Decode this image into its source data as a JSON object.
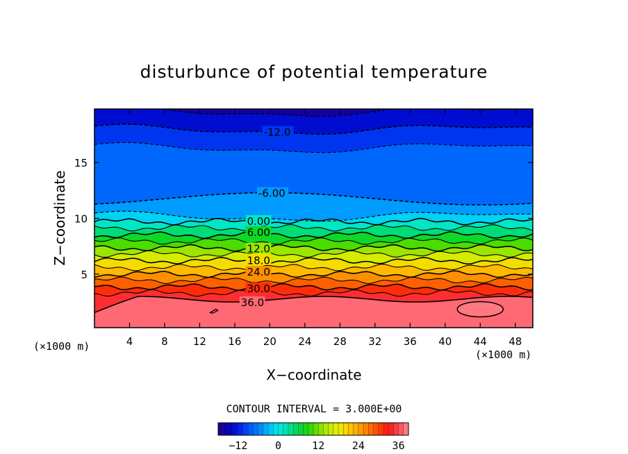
{
  "chart_data": {
    "type": "contour",
    "title": "disturbunce of potential temperature",
    "xlabel": "X−coordinate",
    "ylabel": "Z−coordinate",
    "x_unit_left": "(×1000 m)",
    "x_unit_right": "(×1000 m)",
    "xlim": [
      0,
      50
    ],
    "ylim": [
      0.2,
      19.8
    ],
    "x_ticks": [
      4,
      8,
      12,
      16,
      20,
      24,
      28,
      32,
      36,
      40,
      44,
      48
    ],
    "x_tick_labels": [
      "4",
      "8",
      "12",
      "16",
      "20",
      "24",
      "28",
      "32",
      "36",
      "40",
      "44",
      "48"
    ],
    "y_ticks": [
      5,
      10,
      15
    ],
    "y_tick_labels": [
      "5",
      "10",
      "15"
    ],
    "contour_interval_text": "CONTOUR INTERVAL = 3.000E+00",
    "contour_interval": 3,
    "levels": [
      {
        "value": -15,
        "z": 19.55,
        "dashed": true
      },
      {
        "value": -12,
        "z": 17.95,
        "dashed": true,
        "label": "-12.0",
        "label_x": 19.3
      },
      {
        "value": -9,
        "z": 16.3,
        "dashed": true
      },
      {
        "value": -6,
        "z": 11.4,
        "dashed": true,
        "label": "-6.00",
        "label_x": 18.7
      },
      {
        "value": -3,
        "z": 10.15,
        "dashed": true
      },
      {
        "value": 0,
        "z": 9.7,
        "dashed": false,
        "label": "0.00",
        "label_x": 17.4
      },
      {
        "value": 3,
        "z": 9.15,
        "dashed": false
      },
      {
        "value": 6,
        "z": 8.5,
        "dashed": false,
        "label": "6.00",
        "label_x": 17.4
      },
      {
        "value": 9,
        "z": 7.95,
        "dashed": false
      },
      {
        "value": 12,
        "z": 7.35,
        "dashed": false,
        "label": "12.0",
        "label_x": 17.4
      },
      {
        "value": 15,
        "z": 6.8,
        "dashed": false
      },
      {
        "value": 18,
        "z": 6.2,
        "dashed": false,
        "label": "18.0",
        "label_x": 17.4
      },
      {
        "value": 21,
        "z": 5.6,
        "dashed": false
      },
      {
        "value": 24,
        "z": 5.0,
        "dashed": false,
        "label": "24.0",
        "label_x": 17.4
      },
      {
        "value": 27,
        "z": 4.45,
        "dashed": false
      },
      {
        "value": 30,
        "z": 3.85,
        "dashed": false,
        "label": "30.0",
        "label_x": 17.4
      },
      {
        "value": 33,
        "z": 3.3,
        "dashed": false
      },
      {
        "value": 36,
        "z": 2.75,
        "dashed": false,
        "label": "36.0",
        "label_x": 16.7
      }
    ],
    "colorbar": {
      "min": -18,
      "max": 39,
      "tick_values": [
        -12,
        0,
        12,
        24,
        36
      ],
      "tick_labels": [
        "−12",
        "0",
        "12",
        "24",
        "36"
      ]
    },
    "colors": {
      "cold": "#0000b0",
      "zero": "#00e8f0",
      "warm": "#ff2020",
      "max": "#ff6068"
    }
  }
}
